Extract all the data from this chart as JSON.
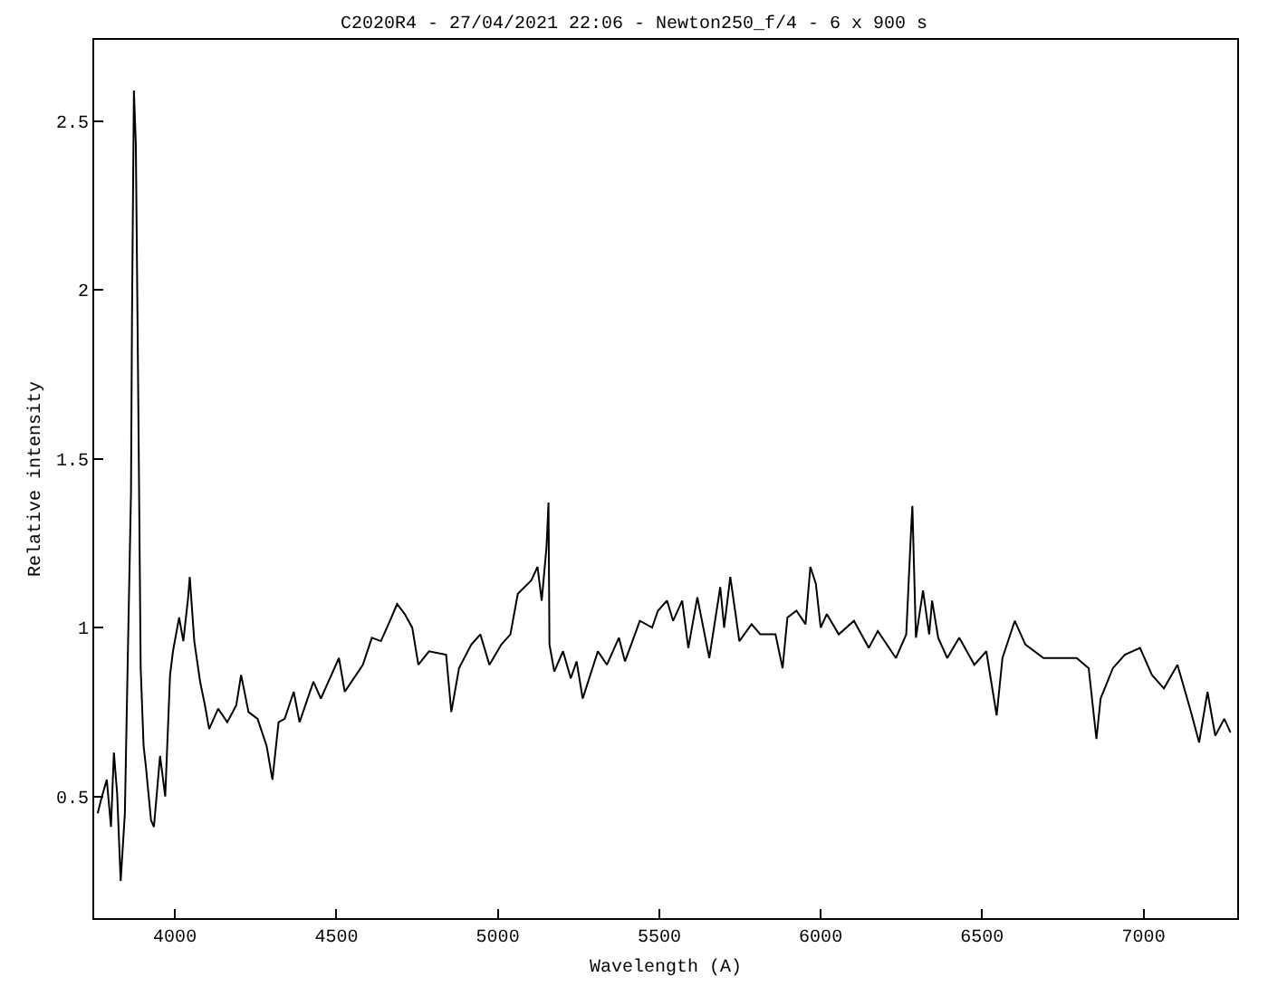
{
  "chart_data": {
    "type": "line",
    "title": "C2020R4 - 27/04/2021 22:06 - Newton250_f/4 - 6 x 900 s",
    "xlabel": "Wavelength (A)",
    "ylabel": "Relative intensity",
    "xlim": [
      3750,
      7290
    ],
    "xticks": [
      4000,
      4500,
      5000,
      5500,
      6000,
      6500,
      7000
    ],
    "ylim": [
      0.14,
      2.74
    ],
    "yticks": [
      0.5,
      1,
      1.5,
      2,
      2.5
    ],
    "grid": false,
    "marker": "none",
    "line_style": "solid",
    "series": [
      {
        "color": "#000000",
        "x": [
          3761,
          3771,
          3789,
          3802,
          3811,
          3821,
          3832,
          3845,
          3854,
          3864,
          3867,
          3873,
          3879,
          3886,
          3894,
          3903,
          3910,
          3926,
          3935,
          3954,
          3970,
          3985,
          3994,
          4013,
          4026,
          4041,
          4046,
          4060,
          4078,
          4093,
          4106,
          4134,
          4162,
          4190,
          4205,
          4228,
          4256,
          4284,
          4302,
          4321,
          4340,
          4368,
          4386,
          4429,
          4452,
          4508,
          4526,
          4582,
          4610,
          4638,
          4666,
          4688,
          4712,
          4735,
          4754,
          4787,
          4840,
          4856,
          4880,
          4918,
          4946,
          4974,
          5011,
          5039,
          5062,
          5104,
          5123,
          5136,
          5151,
          5157,
          5160,
          5175,
          5202,
          5226,
          5244,
          5263,
          5310,
          5338,
          5375,
          5394,
          5440,
          5478,
          5496,
          5524,
          5543,
          5571,
          5590,
          5618,
          5655,
          5689,
          5701,
          5720,
          5735,
          5748,
          5786,
          5813,
          5860,
          5882,
          5897,
          5925,
          5953,
          5968,
          5985,
          6000,
          6019,
          6056,
          6103,
          6149,
          6177,
          6233,
          6265,
          6280,
          6284,
          6295,
          6317,
          6336,
          6345,
          6364,
          6392,
          6429,
          6476,
          6513,
          6545,
          6563,
          6601,
          6634,
          6690,
          6746,
          6793,
          6830,
          6854,
          6867,
          6905,
          6942,
          6989,
          7026,
          7063,
          7105,
          7147,
          7172,
          7198,
          7222,
          7250,
          7269
        ],
        "values": [
          0.45,
          0.49,
          0.55,
          0.41,
          0.63,
          0.51,
          0.25,
          0.45,
          0.91,
          1.4,
          1.91,
          2.59,
          2.43,
          1.73,
          0.88,
          0.65,
          0.59,
          0.43,
          0.41,
          0.62,
          0.5,
          0.86,
          0.93,
          1.03,
          0.96,
          1.09,
          1.15,
          0.96,
          0.84,
          0.77,
          0.7,
          0.76,
          0.72,
          0.77,
          0.86,
          0.75,
          0.73,
          0.65,
          0.55,
          0.72,
          0.73,
          0.81,
          0.72,
          0.84,
          0.79,
          0.91,
          0.81,
          0.89,
          0.97,
          0.96,
          1.02,
          1.07,
          1.04,
          1.0,
          0.89,
          0.93,
          0.92,
          0.75,
          0.88,
          0.95,
          0.98,
          0.89,
          0.95,
          0.98,
          1.1,
          1.14,
          1.18,
          1.08,
          1.24,
          1.37,
          0.95,
          0.87,
          0.93,
          0.85,
          0.9,
          0.79,
          0.93,
          0.89,
          0.97,
          0.9,
          1.02,
          1.0,
          1.05,
          1.08,
          1.02,
          1.08,
          0.94,
          1.09,
          0.91,
          1.12,
          1.0,
          1.15,
          1.05,
          0.96,
          1.01,
          0.98,
          0.98,
          0.88,
          1.03,
          1.05,
          1.01,
          1.18,
          1.13,
          1.0,
          1.04,
          0.98,
          1.02,
          0.94,
          0.99,
          0.91,
          0.98,
          1.29,
          1.36,
          0.97,
          1.11,
          0.98,
          1.08,
          0.97,
          0.91,
          0.97,
          0.89,
          0.93,
          0.74,
          0.91,
          1.02,
          0.95,
          0.91,
          0.91,
          0.91,
          0.88,
          0.67,
          0.79,
          0.88,
          0.92,
          0.94,
          0.86,
          0.82,
          0.89,
          0.75,
          0.66,
          0.81,
          0.68,
          0.73,
          0.69
        ]
      }
    ]
  }
}
